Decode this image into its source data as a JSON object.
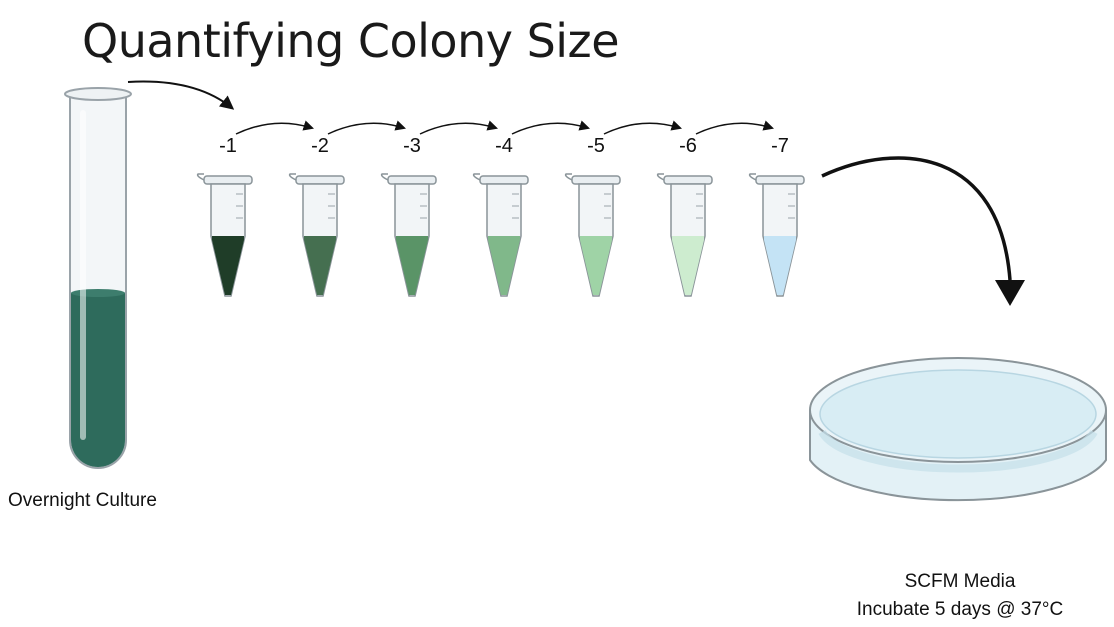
{
  "title": "Quantifying Colony Size",
  "culture": {
    "label": "Overnight Culture",
    "liquid_color": "#2e6b5c"
  },
  "dilutions": [
    {
      "label": "-1",
      "color": "#1f3d28"
    },
    {
      "label": "-2",
      "color": "#456f50"
    },
    {
      "label": "-3",
      "color": "#5a9467"
    },
    {
      "label": "-4",
      "color": "#80b88a"
    },
    {
      "label": "-5",
      "color": "#9fd3a6"
    },
    {
      "label": "-6",
      "color": "#cdeccf"
    },
    {
      "label": "-7",
      "color": "#c4e3f5"
    }
  ],
  "plate": {
    "name": "SCFM Media",
    "note": "Incubate 5 days @ 37°C",
    "agar_color": "#d8edf4"
  }
}
